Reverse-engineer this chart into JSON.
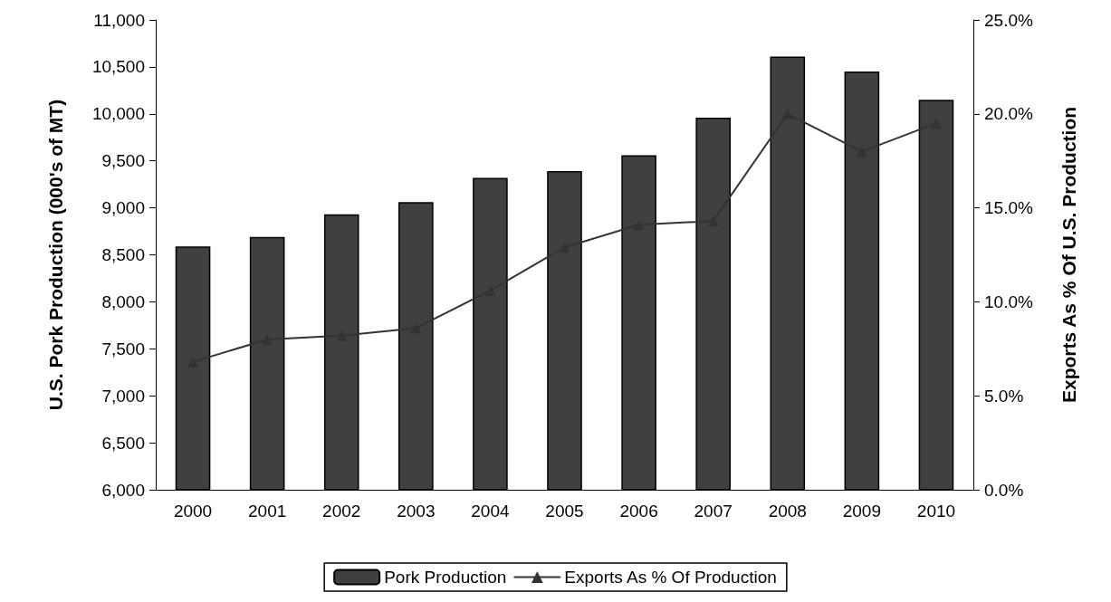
{
  "chart_data": {
    "type": "bar",
    "ylabel": "U.S. Pork Production (000's of MT)",
    "y2label": "Exports As % Of U.S. Production",
    "categories": [
      "2000",
      "2001",
      "2002",
      "2003",
      "2004",
      "2005",
      "2006",
      "2007",
      "2008",
      "2009",
      "2010"
    ],
    "series": [
      {
        "name": "Pork Production",
        "color": "#404040",
        "values": [
          8590,
          8690,
          8930,
          9060,
          9320,
          9390,
          9560,
          9960,
          10610,
          10450,
          10150
        ]
      },
      {
        "name": "Exports As % Of Production",
        "type": "line",
        "axis": "y2",
        "color": "#333333",
        "values": [
          6.8,
          8.0,
          8.2,
          8.6,
          10.6,
          12.9,
          14.1,
          14.3,
          20.0,
          18.0,
          19.5
        ]
      }
    ],
    "ylim": [
      6000,
      11000
    ],
    "yticks": [
      {
        "value": 6000,
        "label": "6,000"
      },
      {
        "value": 6500,
        "label": "6,500"
      },
      {
        "value": 7000,
        "label": "7,000"
      },
      {
        "value": 7500,
        "label": "7,500"
      },
      {
        "value": 8000,
        "label": "8,000"
      },
      {
        "value": 8500,
        "label": "8,500"
      },
      {
        "value": 9000,
        "label": "9,000"
      },
      {
        "value": 9500,
        "label": "9,500"
      },
      {
        "value": 10000,
        "label": "10,000"
      },
      {
        "value": 10500,
        "label": "10,500"
      },
      {
        "value": 11000,
        "label": "11,000"
      }
    ],
    "y2lim": [
      0,
      25
    ],
    "y2ticks": [
      {
        "value": 0,
        "label": "0.0%"
      },
      {
        "value": 5,
        "label": "5.0%"
      },
      {
        "value": 10,
        "label": "10.0%"
      },
      {
        "value": 15,
        "label": "15.0%"
      },
      {
        "value": 20,
        "label": "20.0%"
      },
      {
        "value": 25,
        "label": "25.0%"
      }
    ],
    "grid": false,
    "legend": "bottom",
    "marker": "triangle",
    "line_style": "solid"
  }
}
